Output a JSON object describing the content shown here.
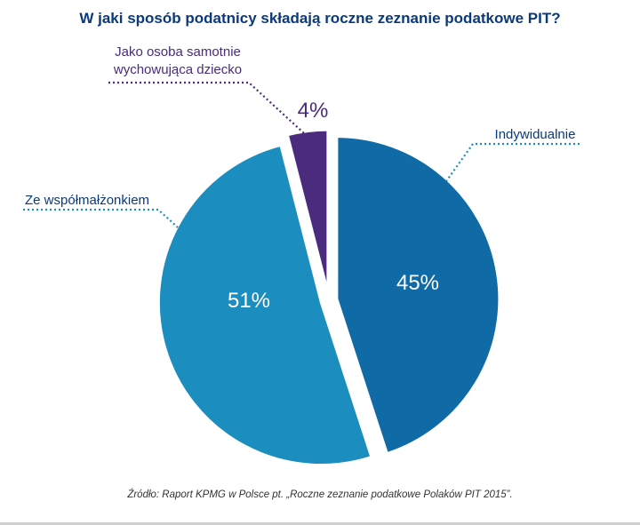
{
  "chart_data": {
    "type": "pie",
    "title": "W jaki sposób podatnicy składają roczne zeznanie podatkowe PIT?",
    "unit": "%",
    "slices": [
      {
        "label": "Indywidualnie",
        "value": 45,
        "display": "45%",
        "color": "#0f6aa6"
      },
      {
        "label": "Ze współmałżonkiem",
        "value": 51,
        "display": "51%",
        "color": "#1c8dbf"
      },
      {
        "label": "Jako osoba samotnie wychowująca dziecko",
        "label_lines": [
          "Jako osoba samotnie",
          "wychowująca dziecko"
        ],
        "value": 4,
        "display": "4%",
        "color": "#4a2b7d"
      }
    ],
    "source": "Źródło: Raport KPMG w Polsce pt. „Roczne zeznanie podatkowe Polaków PIT 2015”."
  },
  "colors": {
    "title": "#0b3a7a",
    "label_blue": "#0b3a7a",
    "label_purple": "#4a2b7d",
    "leader_blue": "#1c8dbf",
    "leader_purple": "#4a2b7d",
    "value_text_light": "#ffffff",
    "value_text_dark": "#4a2b7d",
    "source_text": "#333333"
  }
}
